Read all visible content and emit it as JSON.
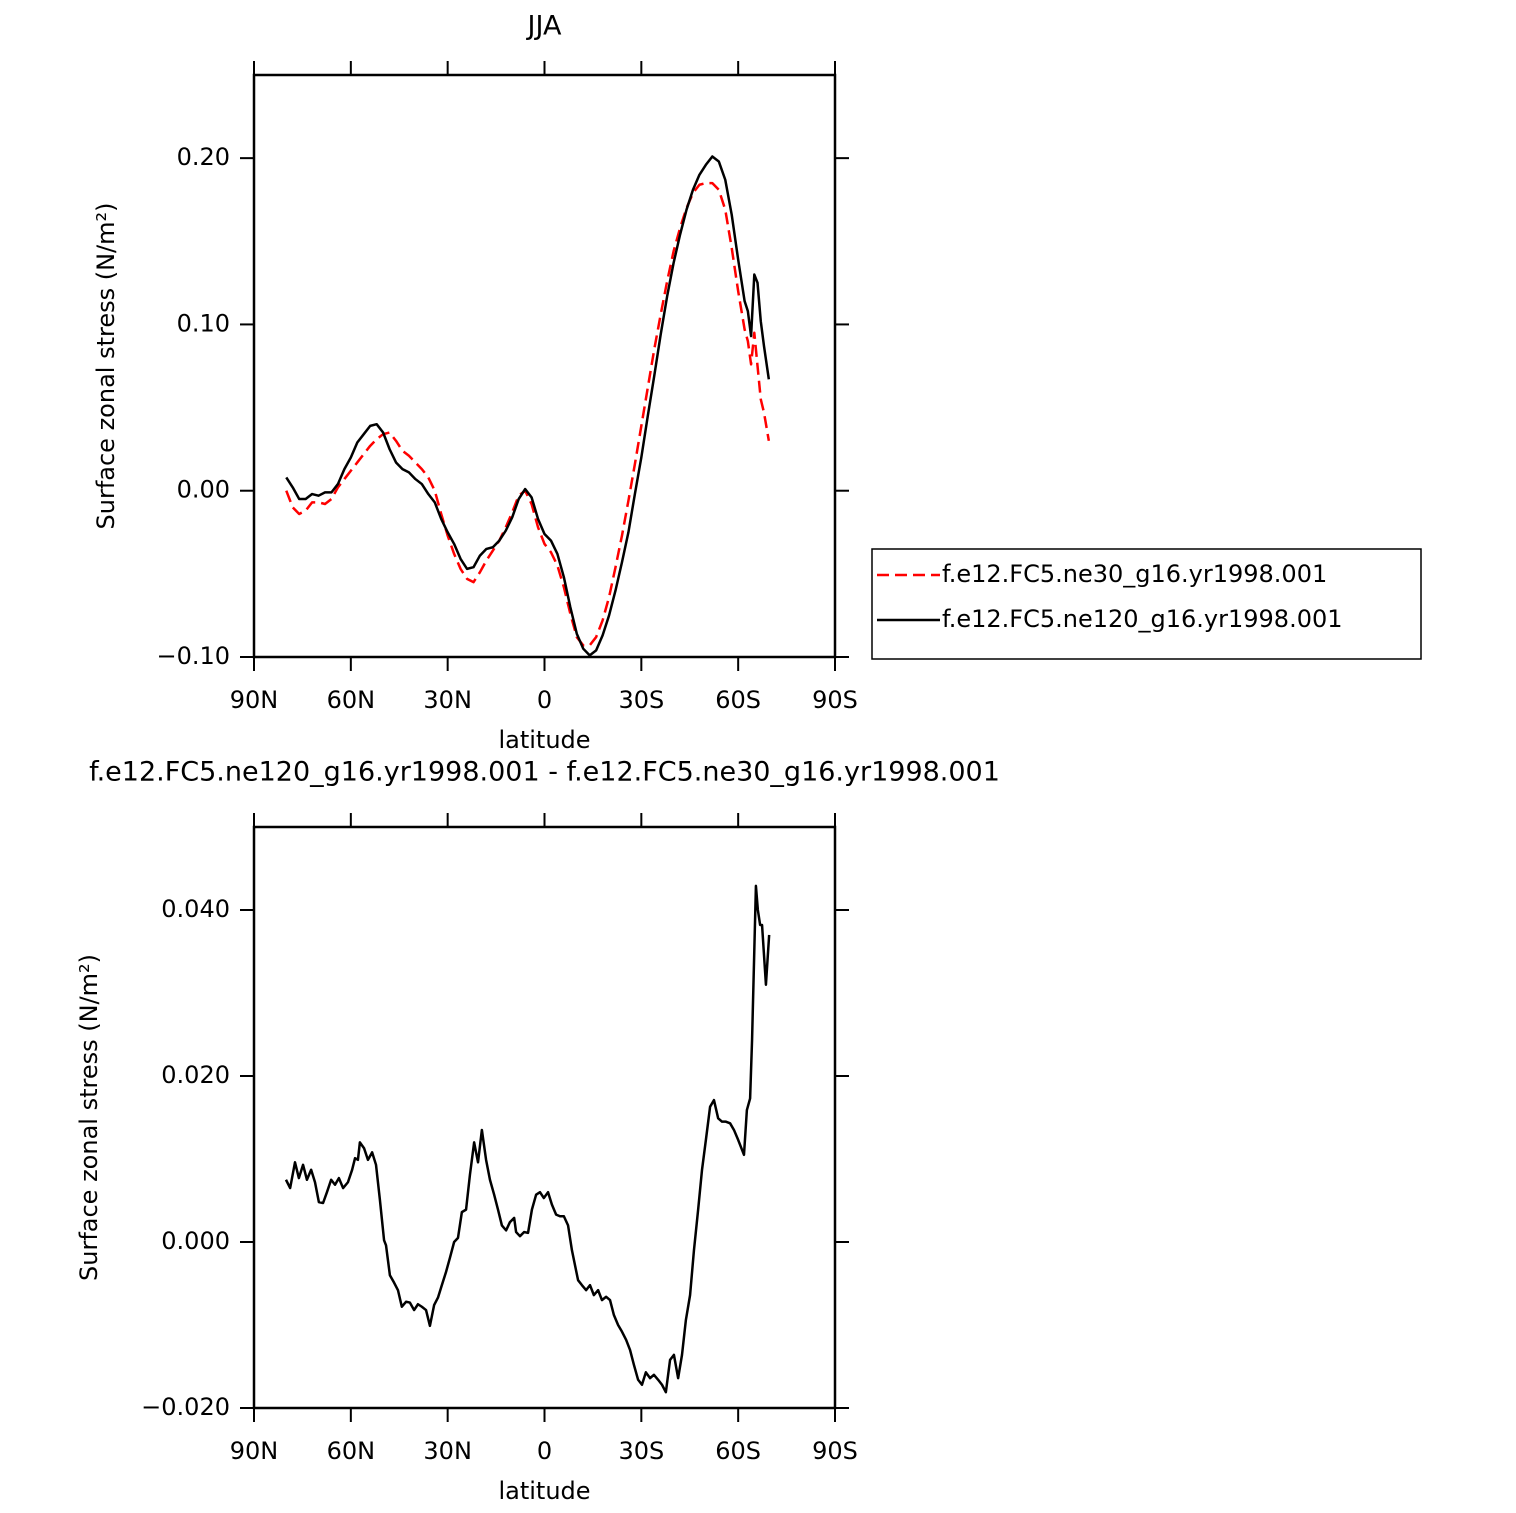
{
  "chart_data": [
    {
      "type": "line",
      "title": "JJA",
      "xlabel": "latitude",
      "ylabel": "Surface zonal stress (N/m²)",
      "xlim": [
        90,
        -90
      ],
      "xticks": [
        {
          "value": 90,
          "label": "90N"
        },
        {
          "value": 60,
          "label": "60N"
        },
        {
          "value": 30,
          "label": "30N"
        },
        0,
        {
          "value": -30,
          "label": "30S"
        },
        {
          "value": -60,
          "label": "60S"
        },
        {
          "value": -90,
          "label": "90S"
        }
      ],
      "ylim": [
        -0.1,
        0.25
      ],
      "yticks": [
        {
          "value": -0.1,
          "label": "−0.10"
        },
        {
          "value": 0,
          "label": "0.00"
        },
        {
          "value": 0.1,
          "label": "0.10"
        },
        {
          "value": 0.2,
          "label": "0.20"
        }
      ],
      "grid": false,
      "legend": "right",
      "x": [
        80,
        78,
        76,
        74,
        72,
        70,
        68,
        66,
        64,
        62,
        60,
        58,
        56,
        54,
        52,
        50,
        48,
        46,
        44,
        42,
        40,
        38,
        36,
        34,
        32,
        30,
        28,
        26,
        24,
        22,
        20,
        18,
        16,
        14,
        12,
        10,
        8,
        6,
        4,
        2,
        0,
        -2,
        -4,
        -6,
        -8,
        -10,
        -12,
        -14,
        -16,
        -18,
        -20,
        -22,
        -24,
        -26,
        -28,
        -30,
        -32,
        -34,
        -36,
        -38,
        -40,
        -42,
        -44,
        -46,
        -48,
        -50,
        -52,
        -54,
        -56,
        -58,
        -60,
        -62,
        -63,
        -64,
        -65,
        -66,
        -67,
        -68,
        -69.5
      ],
      "series": [
        {
          "name": "f.e12.FC5.ne30_g16.yr1998.001",
          "color": "#ff0000",
          "dash": "dashed",
          "values": [
            0.0,
            -0.01,
            -0.014,
            -0.012,
            -0.007,
            -0.007,
            -0.008,
            -0.005,
            0.002,
            0.007,
            0.012,
            0.017,
            0.022,
            0.027,
            0.031,
            0.034,
            0.035,
            0.03,
            0.024,
            0.021,
            0.017,
            0.013,
            0.008,
            0.0,
            -0.014,
            -0.027,
            -0.038,
            -0.047,
            -0.053,
            -0.055,
            -0.049,
            -0.042,
            -0.036,
            -0.03,
            -0.022,
            -0.013,
            -0.003,
            0.0,
            -0.008,
            -0.022,
            -0.032,
            -0.037,
            -0.045,
            -0.058,
            -0.074,
            -0.088,
            -0.093,
            -0.093,
            -0.088,
            -0.078,
            -0.064,
            -0.046,
            -0.027,
            -0.006,
            0.016,
            0.039,
            0.062,
            0.085,
            0.106,
            0.126,
            0.144,
            0.158,
            0.17,
            0.179,
            0.184,
            0.185,
            0.185,
            0.181,
            0.169,
            0.146,
            0.12,
            0.097,
            0.09,
            0.076,
            0.095,
            0.075,
            0.055,
            0.047,
            0.03
          ]
        },
        {
          "name": "f.e12.FC5.ne120_g16.yr1998.001",
          "color": "#000000",
          "dash": "solid",
          "values": [
            0.008,
            0.002,
            -0.005,
            -0.005,
            -0.002,
            -0.003,
            -0.001,
            -0.001,
            0.004,
            0.013,
            0.02,
            0.029,
            0.034,
            0.039,
            0.04,
            0.035,
            0.025,
            0.017,
            0.013,
            0.011,
            0.007,
            0.004,
            -0.002,
            -0.007,
            -0.017,
            -0.025,
            -0.032,
            -0.041,
            -0.047,
            -0.046,
            -0.039,
            -0.035,
            -0.034,
            -0.03,
            -0.024,
            -0.016,
            -0.005,
            0.001,
            -0.004,
            -0.017,
            -0.026,
            -0.03,
            -0.038,
            -0.052,
            -0.07,
            -0.086,
            -0.095,
            -0.099,
            -0.096,
            -0.087,
            -0.075,
            -0.06,
            -0.043,
            -0.025,
            -0.002,
            0.02,
            0.045,
            0.069,
            0.094,
            0.117,
            0.137,
            0.154,
            0.169,
            0.181,
            0.19,
            0.196,
            0.201,
            0.198,
            0.187,
            0.166,
            0.139,
            0.114,
            0.108,
            0.093,
            0.13,
            0.125,
            0.102,
            0.087,
            0.067
          ]
        }
      ]
    },
    {
      "type": "line",
      "title": "f.e12.FC5.ne120_g16.yr1998.001 - f.e12.FC5.ne30_g16.yr1998.001",
      "xlabel": "latitude",
      "ylabel": "Surface zonal stress (N/m²)",
      "xlim": [
        90,
        -90
      ],
      "xticks": [
        {
          "value": 90,
          "label": "90N"
        },
        {
          "value": 60,
          "label": "60N"
        },
        {
          "value": 30,
          "label": "30N"
        },
        0,
        {
          "value": -30,
          "label": "30S"
        },
        {
          "value": -60,
          "label": "60S"
        },
        {
          "value": -90,
          "label": "90S"
        }
      ],
      "ylim": [
        -0.02,
        0.05
      ],
      "yticks": [
        {
          "value": -0.02,
          "label": "−0.020"
        },
        {
          "value": 0,
          "label": "0.000"
        },
        {
          "value": 0.02,
          "label": "0.020"
        },
        {
          "value": 0.04,
          "label": "0.040"
        }
      ],
      "grid": false,
      "x": [
        80.1,
        78.8,
        77.3,
        76.1,
        74.8,
        73.6,
        72.3,
        71.1,
        69.9,
        68.6,
        67.4,
        66.1,
        64.9,
        63.7,
        62.4,
        60.9,
        59.6,
        58.7,
        57.8,
        57.2,
        55.9,
        54.7,
        53.4,
        52.2,
        51.0,
        49.7,
        49.1,
        47.9,
        46.6,
        45.4,
        44.2,
        42.9,
        41.7,
        40.4,
        39.2,
        38.0,
        36.7,
        35.5,
        34.2,
        33.0,
        31.8,
        30.5,
        29.3,
        28.0,
        26.8,
        25.6,
        24.3,
        23.1,
        21.8,
        20.6,
        19.4,
        18.1,
        16.9,
        15.6,
        14.4,
        13.2,
        11.9,
        10.7,
        9.4,
        8.8,
        7.6,
        6.3,
        5.1,
        3.9,
        2.6,
        1.4,
        0.2,
        -1.1,
        -2.3,
        -3.6,
        -4.8,
        -6.0,
        -7.3,
        -8.5,
        -10.4,
        -11.6,
        -12.9,
        -14.1,
        -15.3,
        -16.6,
        -17.8,
        -19.1,
        -20.3,
        -21.5,
        -22.8,
        -24.0,
        -25.3,
        -26.5,
        -27.7,
        -29.0,
        -30.2,
        -31.4,
        -32.7,
        -33.9,
        -35.2,
        -36.4,
        -37.6,
        -38.9,
        -40.1,
        -41.4,
        -42.6,
        -43.8,
        -45.1,
        -46.3,
        -47.6,
        -48.8,
        -50.0,
        -51.3,
        -52.5,
        -53.8,
        -55.0,
        -56.2,
        -57.5,
        -58.7,
        -60.0,
        -61.8,
        -62.7,
        -63.7,
        -64.3,
        -65.5,
        -66.1,
        -66.8,
        -67.4,
        -68.6,
        -69.6
      ],
      "series": [
        {
          "color": "#000000",
          "dash": "solid",
          "values": [
            0.0075,
            0.0065,
            0.0096,
            0.0077,
            0.0093,
            0.0075,
            0.0087,
            0.0072,
            0.0048,
            0.0047,
            0.006,
            0.0075,
            0.0069,
            0.0077,
            0.0065,
            0.0072,
            0.0087,
            0.0101,
            0.0099,
            0.012,
            0.0113,
            0.0099,
            0.0108,
            0.0093,
            0.0051,
            0.0002,
            -0.0004,
            -0.004,
            -0.0049,
            -0.0058,
            -0.0078,
            -0.0072,
            -0.0073,
            -0.0082,
            -0.0075,
            -0.0078,
            -0.0082,
            -0.0101,
            -0.0076,
            -0.0067,
            -0.0052,
            -0.0036,
            -0.0019,
            0.0,
            0.0005,
            0.0036,
            0.0039,
            0.0081,
            0.012,
            0.0096,
            0.0135,
            0.0099,
            0.0075,
            0.0057,
            0.0039,
            0.002,
            0.0014,
            0.0024,
            0.0029,
            0.0012,
            0.0007,
            0.0012,
            0.0011,
            0.0039,
            0.0057,
            0.006,
            0.0053,
            0.006,
            0.0045,
            0.0033,
            0.0031,
            0.0031,
            0.002,
            -0.001,
            -0.0046,
            -0.0052,
            -0.0058,
            -0.0052,
            -0.0064,
            -0.0058,
            -0.007,
            -0.0066,
            -0.007,
            -0.0088,
            -0.01,
            -0.0108,
            -0.0118,
            -0.013,
            -0.0148,
            -0.0166,
            -0.0172,
            -0.0157,
            -0.0164,
            -0.016,
            -0.0166,
            -0.0172,
            -0.0181,
            -0.0142,
            -0.0136,
            -0.0164,
            -0.0136,
            -0.0094,
            -0.0064,
            -0.001,
            0.0039,
            0.0087,
            0.0123,
            0.0163,
            0.0171,
            0.0149,
            0.0145,
            0.0145,
            0.0143,
            0.0135,
            0.0123,
            0.0105,
            0.0159,
            0.0173,
            0.0243,
            0.0429,
            0.04,
            0.0382,
            0.0382,
            0.031,
            0.037
          ]
        }
      ]
    }
  ]
}
